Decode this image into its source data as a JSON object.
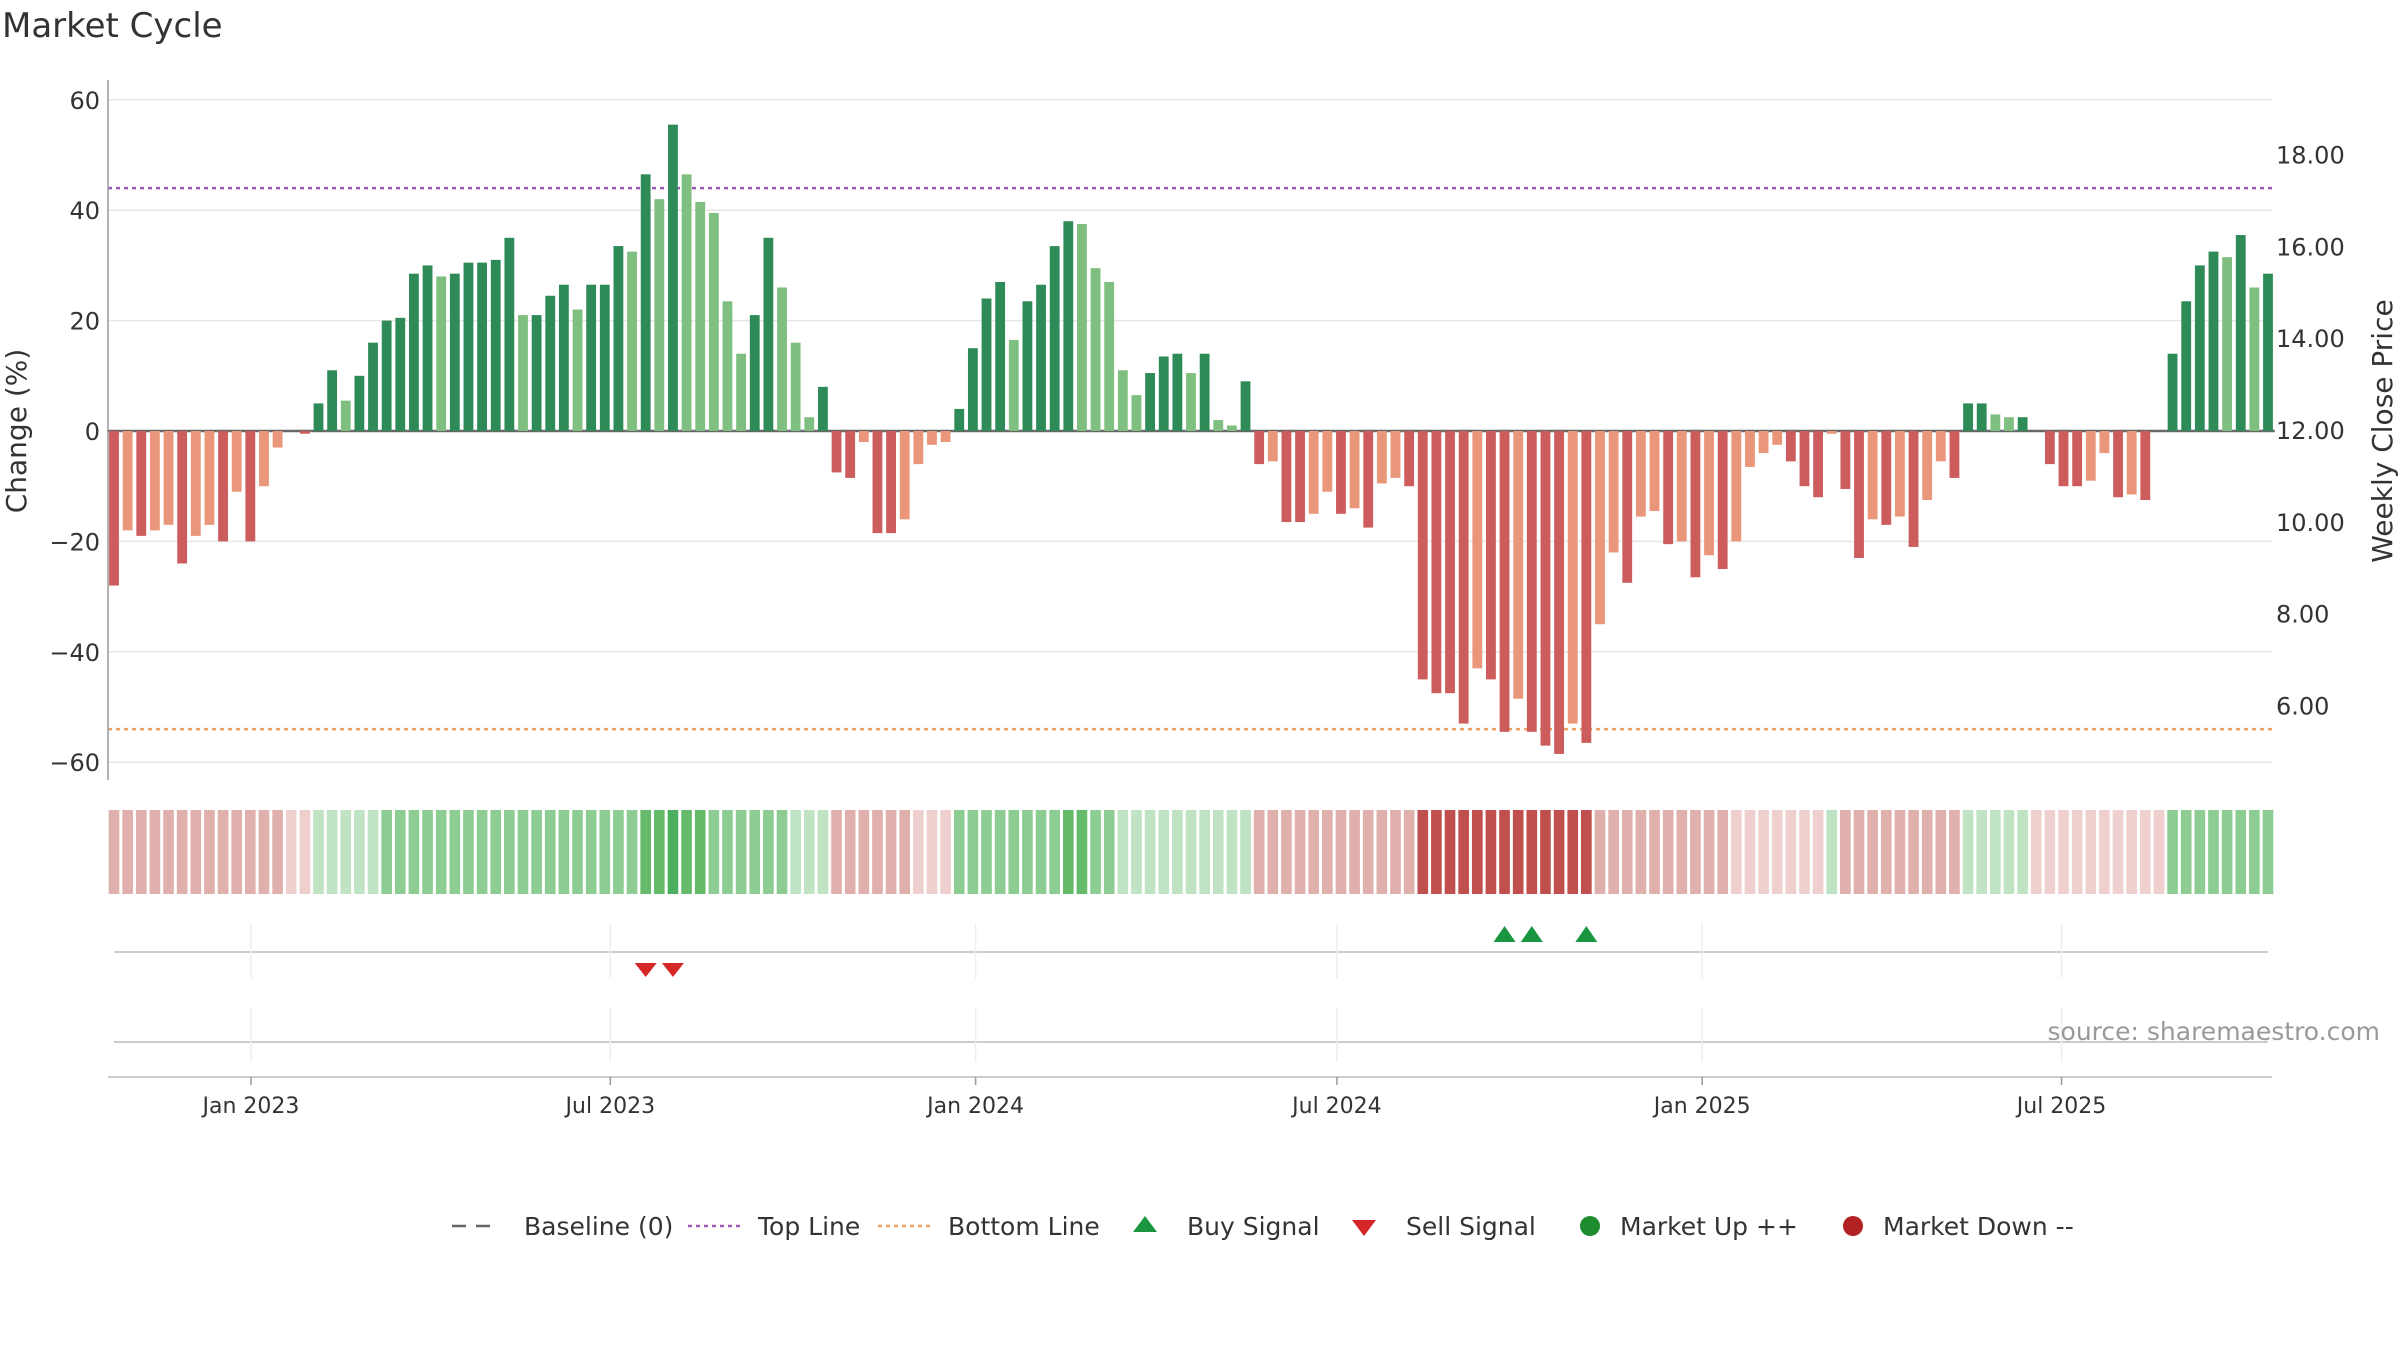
{
  "chart_data": {
    "type": "bar",
    "title": "Market Cycle",
    "ylabel": "Change (%)",
    "y2label": "Weekly Close Price",
    "ylim": [
      -63,
      66
    ],
    "y2lim": [
      4.3,
      19.3
    ],
    "yticks": [
      60,
      40,
      20,
      0,
      -20,
      -40,
      -60
    ],
    "ytick_labels": [
      "60",
      "40",
      "20",
      "0",
      "−20",
      "−40",
      "−60"
    ],
    "y2ticks": [
      18,
      16,
      14,
      12,
      10,
      8,
      6
    ],
    "y2tick_labels": [
      "18.00",
      "16.00",
      "14.00",
      "12.00",
      "10.00",
      "8.00",
      "6.00"
    ],
    "x_start": "2022-10-24",
    "x_end": "2025-10-13",
    "xticks": [
      "2023-01-01",
      "2023-07-01",
      "2024-01-01",
      "2024-07-01",
      "2025-01-01",
      "2025-07-01"
    ],
    "xtick_labels": [
      "Jan 2023",
      "Jul 2023",
      "Jan 2024",
      "Jul 2024",
      "Jan 2025",
      "Jul 2025"
    ],
    "top_line": 44,
    "bottom_line": -54,
    "grid": true,
    "legend_position": "bottom-center",
    "source": "source: sharemaestro.com",
    "values": [
      -28,
      -18,
      -19,
      -18,
      -17,
      -24,
      -19,
      -17,
      -20,
      -11,
      -20,
      -10,
      -3,
      0,
      -0.5,
      5,
      11,
      5.5,
      10,
      16,
      20,
      20.5,
      28.5,
      30,
      28,
      28.5,
      30.5,
      30.5,
      31,
      35,
      21,
      21,
      24.5,
      26.5,
      22,
      26.5,
      26.5,
      33.5,
      32.5,
      46.5,
      42,
      55.5,
      46.5,
      41.5,
      39.5,
      23.5,
      14,
      21,
      35,
      26,
      16,
      2.5,
      8,
      -7.5,
      -8.5,
      -2,
      -18.5,
      -18.5,
      -16,
      -6,
      -2.5,
      -2,
      4,
      15,
      24,
      27,
      16.5,
      23.5,
      26.5,
      33.5,
      38,
      37.5,
      29.5,
      27,
      11,
      6.5,
      10.5,
      13.5,
      14,
      10.5,
      14,
      2,
      1,
      9,
      -6,
      -5.5,
      -16.5,
      -16.5,
      -15,
      -11,
      -15,
      -14,
      -17.5,
      -9.5,
      -8.5,
      -10,
      -45,
      -47.5,
      -47.5,
      -53,
      -43,
      -45,
      -54.5,
      -48.5,
      -54.5,
      -57,
      -58.5,
      -53,
      -56.5,
      -35,
      -22,
      -27.5,
      -15.5,
      -14.5,
      -20.5,
      -20,
      -26.5,
      -22.5,
      -25,
      -20,
      -6.5,
      -4,
      -2.5,
      -5.5,
      -10,
      -12,
      -0.5,
      -10.5,
      -23,
      -16,
      -17,
      -15.5,
      -21,
      -12.5,
      -5.5,
      -8.5,
      5,
      5,
      3,
      2.5,
      2.5,
      0,
      -6,
      -10,
      -10,
      -9,
      -4,
      -12,
      -11.5,
      -12.5,
      0,
      14,
      23.5,
      30,
      32.5,
      31.5,
      35.5,
      26,
      28.5
    ],
    "heat_levels": [
      -1,
      -1,
      -1,
      -1,
      -1,
      -1,
      -1,
      -1,
      -1,
      -1,
      -1,
      -1,
      -1,
      -0.5,
      -0.5,
      0.5,
      0.5,
      0.5,
      0.5,
      0.5,
      1,
      1,
      1,
      1,
      1,
      1,
      1,
      1,
      1,
      1,
      1,
      1,
      1,
      1,
      1,
      1,
      1,
      1,
      1,
      1.5,
      1.5,
      2,
      1.5,
      1.5,
      1,
      1,
      1,
      1,
      1,
      1,
      0.5,
      0.5,
      0.5,
      -1,
      -1,
      -1,
      -1,
      -1,
      -1,
      -0.5,
      -0.5,
      -0.5,
      1,
      1,
      1,
      1,
      1,
      1,
      1,
      1,
      1.5,
      1.5,
      1,
      1,
      0.5,
      0.5,
      0.5,
      0.5,
      0.5,
      0.5,
      0.5,
      0.5,
      0.5,
      0.5,
      -1,
      -1,
      -1,
      -1,
      -1,
      -1,
      -1,
      -1,
      -1,
      -1,
      -1,
      -1,
      -2,
      -2,
      -2,
      -2,
      -2,
      -2,
      -2,
      -2,
      -2,
      -2,
      -2,
      -2,
      -2,
      -1,
      -1,
      -1,
      -1,
      -1,
      -1,
      -1,
      -1,
      -1,
      -1,
      -0.5,
      -0.5,
      -0.5,
      -0.5,
      -0.5,
      -0.5,
      -0.5,
      0.5,
      -1,
      -1,
      -1,
      -1,
      -1,
      -1,
      -1,
      -1,
      -1,
      0.5,
      0.5,
      0.5,
      0.5,
      0.5,
      -0.5,
      -0.5,
      -0.5,
      -0.5,
      -0.5,
      -0.5,
      -0.5,
      -0.5,
      -0.5,
      -0.5,
      1,
      1,
      1,
      1,
      1,
      1,
      1,
      1
    ],
    "buy_signals": [
      102,
      104,
      108
    ],
    "sell_signals": [
      39,
      41
    ],
    "colors": {
      "strong_up": "#2e8b57",
      "weak_up": "#7fbf7f",
      "strong_down": "#cd5c5c",
      "weak_down": "#e9967a",
      "top_line": "#9b59b6",
      "bottom_line": "#f0a060",
      "baseline": "#666666",
      "buy": "#1a9641",
      "sell": "#d62728",
      "market_up": "#1e8b2e",
      "market_down": "#b22222"
    }
  },
  "legend": [
    {
      "label": "Baseline (0)",
      "marker": "dash-line"
    },
    {
      "label": "Top Line",
      "marker": "dotted-purple-line"
    },
    {
      "label": "Bottom Line",
      "marker": "dotted-orange-line"
    },
    {
      "label": "Buy Signal",
      "marker": "green-up-triangle"
    },
    {
      "label": "Sell Signal",
      "marker": "red-down-triangle"
    },
    {
      "label": "Market Up ++",
      "marker": "green-dot"
    },
    {
      "label": "Market Down --",
      "marker": "red-dot"
    }
  ]
}
